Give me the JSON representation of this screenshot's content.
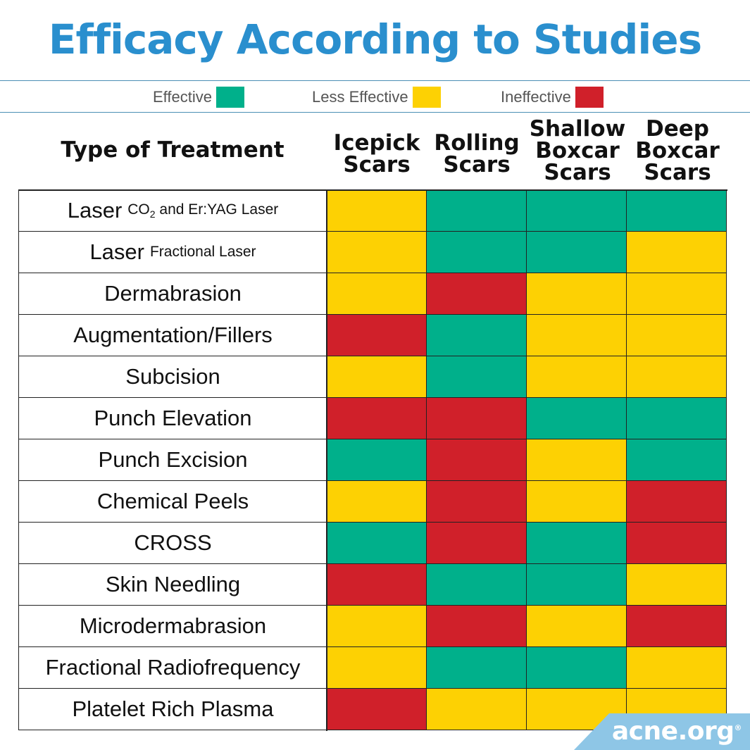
{
  "title": "Efficacy According to Studies",
  "colors": {
    "effective": "#00b08b",
    "less_effective": "#fdd103",
    "ineffective": "#d0202a"
  },
  "legend": {
    "effective": "Effective",
    "less_effective": "Less Effective",
    "ineffective": "Ineffective"
  },
  "chart_data": {
    "type": "table",
    "row_header": "Type of Treatment",
    "columns": [
      {
        "lines": [
          "Icepick",
          "Scars"
        ]
      },
      {
        "lines": [
          "Rolling",
          "Scars"
        ]
      },
      {
        "lines": [
          "Shallow",
          "Boxcar",
          "Scars"
        ]
      },
      {
        "lines": [
          "Deep",
          "Boxcar",
          "Scars"
        ]
      }
    ],
    "rows": [
      {
        "label": "Laser",
        "detail_pre": "CO",
        "detail_sub": "2",
        "detail_post": " and Er:YAG Laser",
        "values": [
          "less_effective",
          "effective",
          "effective",
          "effective"
        ]
      },
      {
        "label": "Laser",
        "detail_pre": "Fractional Laser",
        "detail_sub": "",
        "detail_post": "",
        "values": [
          "less_effective",
          "effective",
          "effective",
          "less_effective"
        ]
      },
      {
        "label": "Dermabrasion",
        "values": [
          "less_effective",
          "ineffective",
          "less_effective",
          "less_effective"
        ]
      },
      {
        "label": "Augmentation/Fillers",
        "values": [
          "ineffective",
          "effective",
          "less_effective",
          "less_effective"
        ]
      },
      {
        "label": "Subcision",
        "values": [
          "less_effective",
          "effective",
          "less_effective",
          "less_effective"
        ]
      },
      {
        "label": "Punch Elevation",
        "values": [
          "ineffective",
          "ineffective",
          "effective",
          "effective"
        ]
      },
      {
        "label": "Punch Excision",
        "values": [
          "effective",
          "ineffective",
          "less_effective",
          "effective"
        ]
      },
      {
        "label": "Chemical Peels",
        "values": [
          "less_effective",
          "ineffective",
          "less_effective",
          "ineffective"
        ]
      },
      {
        "label": "CROSS",
        "values": [
          "effective",
          "ineffective",
          "effective",
          "ineffective"
        ]
      },
      {
        "label": "Skin Needling",
        "values": [
          "ineffective",
          "effective",
          "effective",
          "less_effective"
        ]
      },
      {
        "label": "Microdermabrasion",
        "values": [
          "less_effective",
          "ineffective",
          "less_effective",
          "ineffective"
        ]
      },
      {
        "label": "Fractional Radiofrequency",
        "values": [
          "less_effective",
          "effective",
          "effective",
          "less_effective"
        ]
      },
      {
        "label": "Platelet Rich Plasma",
        "values": [
          "ineffective",
          "less_effective",
          "less_effective",
          "less_effective"
        ]
      }
    ]
  },
  "logo": {
    "text": "acne.org",
    "mark": "®",
    "color": "#8ec6e6"
  }
}
